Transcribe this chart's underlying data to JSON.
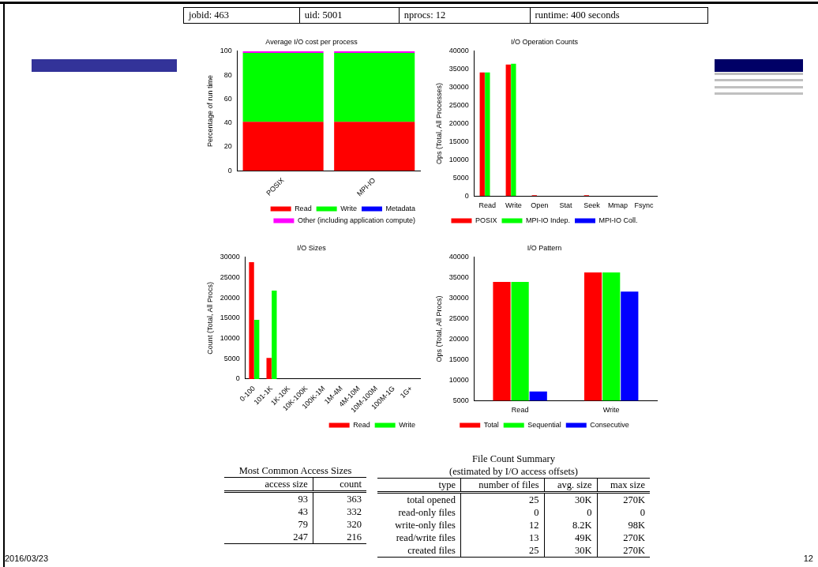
{
  "chart_data": [
    {
      "type": "bar",
      "title": "Average I/O cost per process",
      "ylabel": "Percentage of run time",
      "categories": [
        "POSIX",
        "MPI-IO"
      ],
      "stacked": true,
      "series": [
        {
          "name": "Read",
          "color": "#ff0000",
          "values": [
            41,
            41
          ]
        },
        {
          "name": "Write",
          "color": "#00ff00",
          "values": [
            57.5,
            57.5
          ]
        },
        {
          "name": "Metadata",
          "color": "#0000ff",
          "values": [
            0,
            0
          ]
        },
        {
          "name": "Other (including application compute)",
          "color": "#ff00ff",
          "values": [
            1.5,
            1.5
          ]
        }
      ],
      "ylim": [
        0,
        100
      ],
      "yticks": [
        0,
        20,
        40,
        60,
        80,
        100
      ],
      "grid": false,
      "legend": "bottom right"
    },
    {
      "type": "bar",
      "title": "I/O Operation Counts",
      "ylabel": "Ops (Total, All Processes)",
      "categories": [
        "Read",
        "Write",
        "Open",
        "Stat",
        "Seek",
        "Mmap",
        "Fsync"
      ],
      "series": [
        {
          "name": "POSIX",
          "color": "#ff0000",
          "values": [
            34100,
            36300,
            200,
            0,
            200,
            0,
            0
          ]
        },
        {
          "name": "MPI-IO Indep.",
          "color": "#00ff00",
          "values": [
            34100,
            36500,
            0,
            0,
            0,
            0,
            0
          ]
        },
        {
          "name": "MPI-IO Coll.",
          "color": "#0000ff",
          "values": [
            0,
            0,
            null,
            0,
            0,
            0,
            0
          ]
        }
      ],
      "ylim": [
        0,
        40000
      ],
      "yticks": [
        0,
        5000,
        10000,
        15000,
        20000,
        25000,
        30000,
        35000,
        40000
      ],
      "grid": false,
      "legend": "bottom"
    },
    {
      "type": "bar",
      "title": "I/O Sizes",
      "ylabel": "Count (Total, All Procs)",
      "categories": [
        "0-100",
        "101-1K",
        "1K-10K",
        "10K-100K",
        "100K-1M",
        "1M-4M",
        "4M-10M",
        "10M-100M",
        "100M-1G",
        "1G+"
      ],
      "series": [
        {
          "name": "Read",
          "color": "#ff0000",
          "values": [
            28800,
            5200,
            0,
            0,
            0,
            0,
            0,
            0,
            0,
            0
          ]
        },
        {
          "name": "Write",
          "color": "#00ff00",
          "values": [
            14600,
            21800,
            0,
            0,
            0,
            0,
            0,
            0,
            0,
            0
          ]
        }
      ],
      "ylim": [
        0,
        30000
      ],
      "yticks": [
        0,
        5000,
        10000,
        15000,
        20000,
        25000,
        30000
      ],
      "grid": false,
      "legend": "bottom right"
    },
    {
      "type": "bar",
      "title": "I/O Pattern",
      "ylabel": "Ops (Total, All Procs)",
      "categories": [
        "Read",
        "Write"
      ],
      "series": [
        {
          "name": "Total",
          "color": "#ff0000",
          "values": [
            34000,
            36300
          ]
        },
        {
          "name": "Sequential",
          "color": "#00ff00",
          "values": [
            34000,
            36300
          ]
        },
        {
          "name": "Consecutive",
          "color": "#0000ff",
          "values": [
            7200,
            31600
          ]
        }
      ],
      "ylim": [
        5000,
        40000
      ],
      "yticks": [
        5000,
        10000,
        15000,
        20000,
        25000,
        30000,
        35000,
        40000
      ],
      "grid": false,
      "legend": "bottom"
    },
    {
      "type": "other",
      "annotations": [
        "jobid: 463",
        "uid: 5001",
        "nprocs: 12",
        "runtime: 400 seconds"
      ]
    },
    {
      "type": "other",
      "title": "Most Common Access Sizes",
      "categories": [
        "access size",
        "count"
      ],
      "cell_labels": [
        [
          "93",
          "363"
        ],
        [
          "43",
          "332"
        ],
        [
          "79",
          "320"
        ],
        [
          "247",
          "216"
        ]
      ]
    },
    {
      "type": "other",
      "title": "File Count Summary",
      "subtitle": "(estimated by I/O access offsets)",
      "categories": [
        "type",
        "number of files",
        "avg. size",
        "max size"
      ],
      "cell_labels": [
        [
          "total opened",
          "25",
          "30K",
          "270K"
        ],
        [
          "read-only files",
          "0",
          "0",
          "0"
        ],
        [
          "write-only files",
          "12",
          "8.2K",
          "98K"
        ],
        [
          "read/write files",
          "13",
          "49K",
          "270K"
        ],
        [
          "created files",
          "25",
          "30K",
          "270K"
        ]
      ]
    },
    {
      "type": "other",
      "annotations": [
        "2016/03/23",
        "12"
      ]
    }
  ]
}
